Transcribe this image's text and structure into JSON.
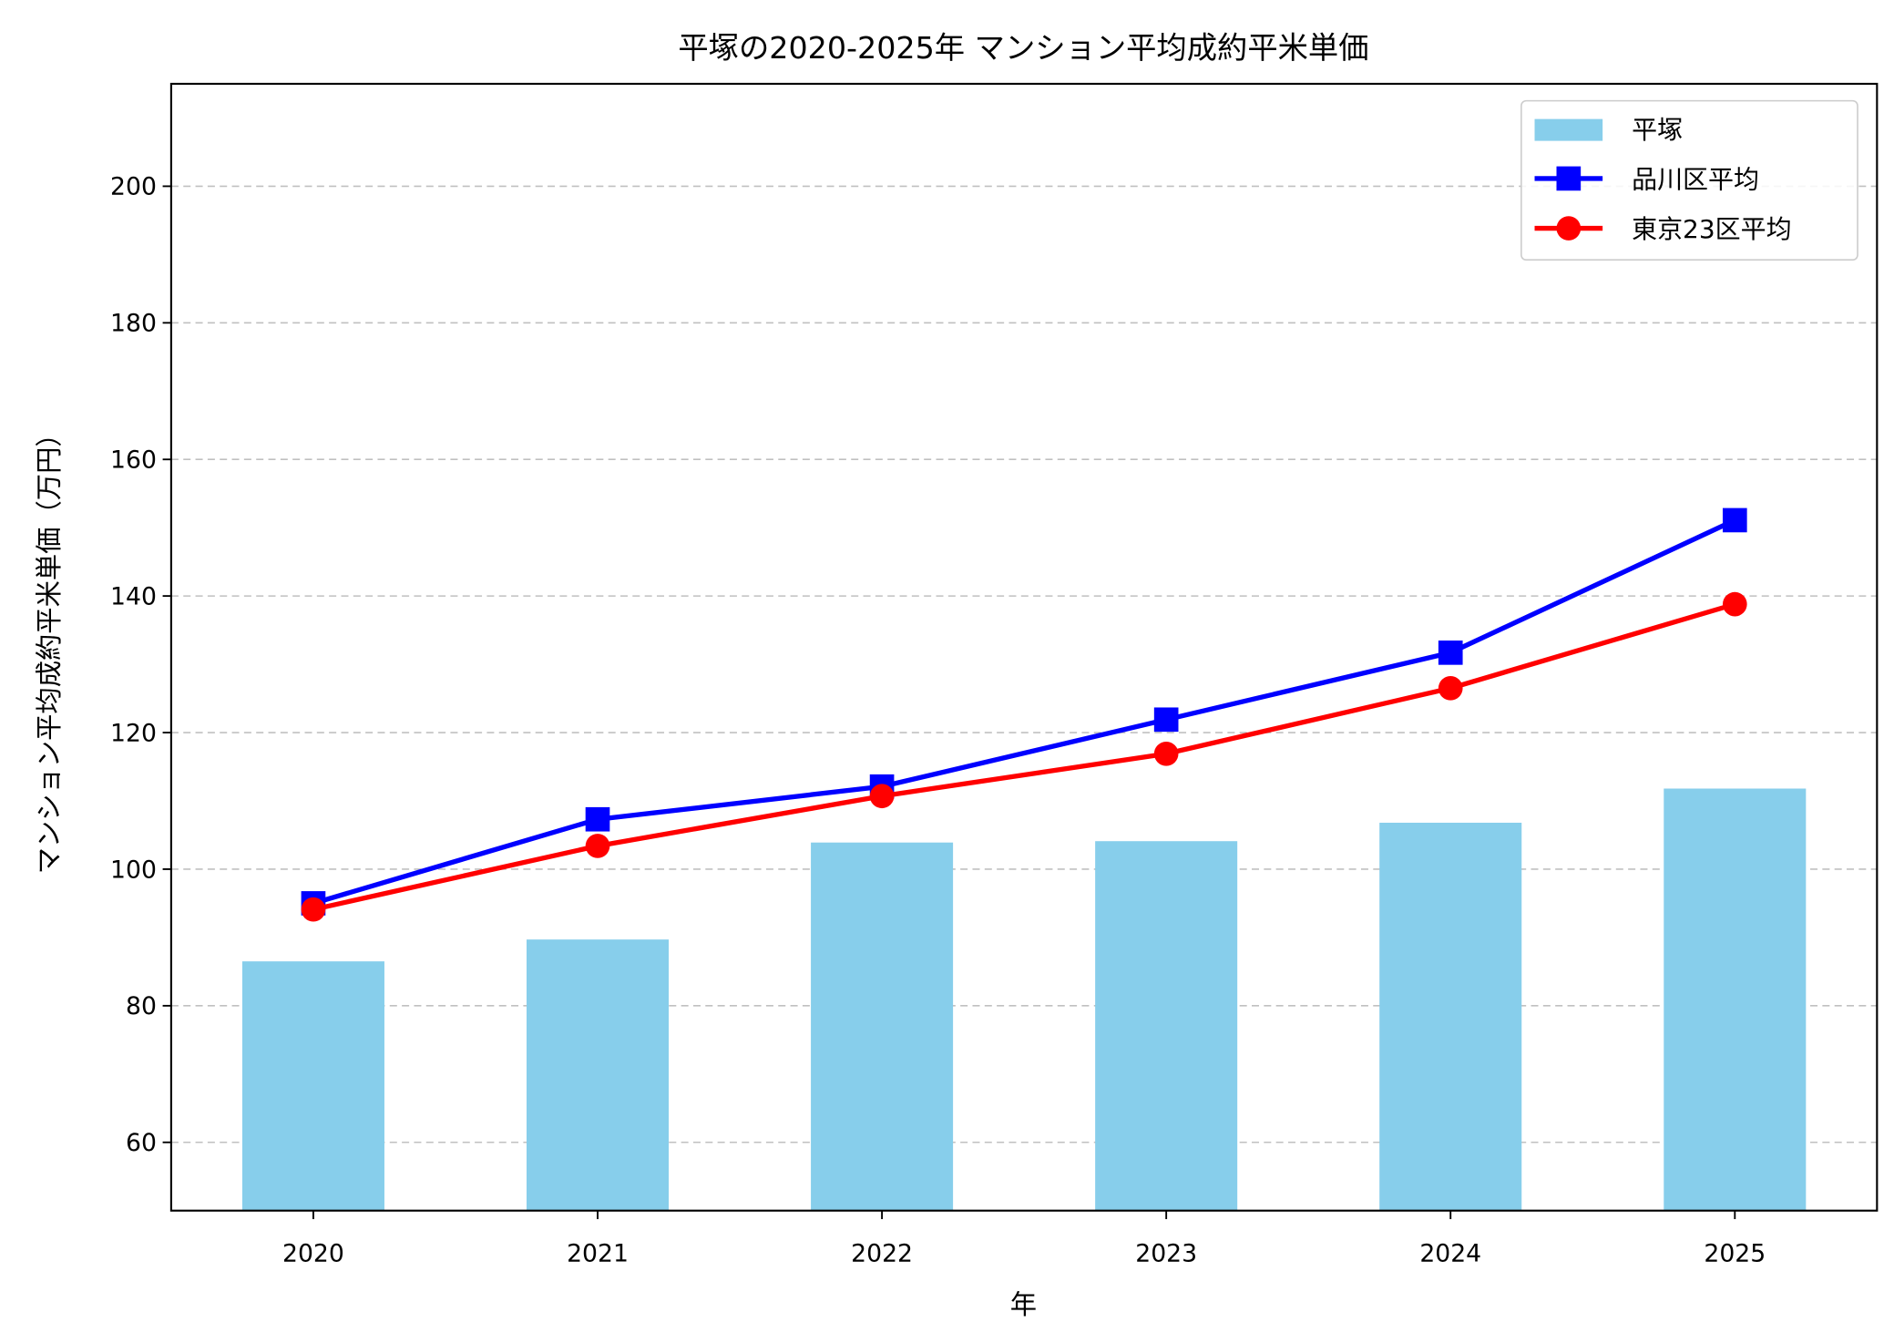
{
  "chart_data": {
    "type": "bar+line",
    "title": "平塚の2020-2025年 マンション平均成約平米単価",
    "xlabel": "年",
    "ylabel": "マンション平均成約平米単価（万円）",
    "categories": [
      "2020",
      "2021",
      "2022",
      "2023",
      "2024",
      "2025"
    ],
    "ylim": [
      50,
      215
    ],
    "yticks": [
      60,
      80,
      100,
      120,
      140,
      160,
      180,
      200
    ],
    "grid": "y dashed",
    "legend_position": "top-right",
    "series": [
      {
        "name": "平塚",
        "kind": "bar",
        "color": "#87ceeb",
        "values": [
          86.5,
          89.7,
          103.9,
          104.1,
          106.8,
          111.8
        ]
      },
      {
        "name": "品川区平均",
        "kind": "line",
        "marker": "square",
        "color": "#0000ff",
        "values": [
          95.0,
          107.3,
          112.1,
          121.9,
          131.7,
          151.1
        ]
      },
      {
        "name": "東京23区平均",
        "kind": "line",
        "marker": "circle",
        "color": "#ff0000",
        "values": [
          94.1,
          103.4,
          110.7,
          116.9,
          126.5,
          138.8
        ]
      }
    ]
  }
}
